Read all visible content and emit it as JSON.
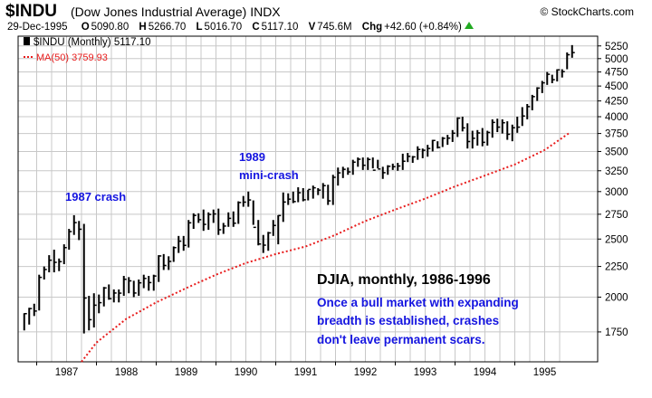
{
  "header": {
    "symbol": "$INDU",
    "name": "(Dow Jones Industrial Average)",
    "exchange": "INDX",
    "brand": "© StockCharts.com",
    "date": "29-Dec-1995",
    "open_label": "O",
    "open": "5090.80",
    "high_label": "H",
    "high": "5266.70",
    "low_label": "L",
    "low": "5016.70",
    "close_label": "C",
    "close": "5117.10",
    "volume_label": "V",
    "volume": "745.6M",
    "change_label": "Chg",
    "change": "+42.60 (+0.84%)",
    "change_color": "#22aa22"
  },
  "legend": {
    "series1": "$INDU (Monthly) 5117.10",
    "series2": "MA(50) 3759.93"
  },
  "annotations": {
    "crash1987": "1987 crash",
    "crash1989_line1": "1989",
    "crash1989_line2": "mini-crash"
  },
  "textbox": {
    "title": "DJIA, monthly, 1986-1996",
    "line1": "Once a bull market with expanding",
    "line2": "breadth is established, crashes",
    "line3": "don't leave permanent scars."
  },
  "chart_data": {
    "type": "ohlc",
    "title": "",
    "xlabel": "",
    "ylabel": "",
    "scale": "log",
    "ylim": [
      1560,
      5450
    ],
    "yticks": [
      1750,
      2000,
      2250,
      2500,
      2750,
      3000,
      3250,
      3500,
      3750,
      4000,
      4250,
      4500,
      4750,
      5000,
      5250
    ],
    "x_tick_labels": [
      "1987",
      "1988",
      "1989",
      "1990",
      "1991",
      "1992",
      "1993",
      "1994",
      "1995"
    ],
    "x_start_year": 1986.75,
    "colors": {
      "price": "#000000",
      "ma": "#e81c1c",
      "annotation": "#1515e0",
      "grid": "#c8c8c8"
    },
    "series": [
      {
        "name": "$INDU (Monthly)",
        "style": "hlc bars",
        "x": [
          "1986-10",
          "1986-11",
          "1986-12",
          "1987-01",
          "1987-02",
          "1987-03",
          "1987-04",
          "1987-05",
          "1987-06",
          "1987-07",
          "1987-08",
          "1987-09",
          "1987-10",
          "1987-11",
          "1987-12",
          "1988-01",
          "1988-02",
          "1988-03",
          "1988-04",
          "1988-05",
          "1988-06",
          "1988-07",
          "1988-08",
          "1988-09",
          "1988-10",
          "1988-11",
          "1988-12",
          "1989-01",
          "1989-02",
          "1989-03",
          "1989-04",
          "1989-05",
          "1989-06",
          "1989-07",
          "1989-08",
          "1989-09",
          "1989-10",
          "1989-11",
          "1989-12",
          "1990-01",
          "1990-02",
          "1990-03",
          "1990-04",
          "1990-05",
          "1990-06",
          "1990-07",
          "1990-08",
          "1990-09",
          "1990-10",
          "1990-11",
          "1990-12",
          "1991-01",
          "1991-02",
          "1991-03",
          "1991-04",
          "1991-05",
          "1991-06",
          "1991-07",
          "1991-08",
          "1991-09",
          "1991-10",
          "1991-11",
          "1991-12",
          "1992-01",
          "1992-02",
          "1992-03",
          "1992-04",
          "1992-05",
          "1992-06",
          "1992-07",
          "1992-08",
          "1992-09",
          "1992-10",
          "1992-11",
          "1992-12",
          "1993-01",
          "1993-02",
          "1993-03",
          "1993-04",
          "1993-05",
          "1993-06",
          "1993-07",
          "1993-08",
          "1993-09",
          "1993-10",
          "1993-11",
          "1993-12",
          "1994-01",
          "1994-02",
          "1994-03",
          "1994-04",
          "1994-05",
          "1994-06",
          "1994-07",
          "1994-08",
          "1994-09",
          "1994-10",
          "1994-11",
          "1994-12",
          "1995-01",
          "1995-02",
          "1995-03",
          "1995-04",
          "1995-05",
          "1995-06",
          "1995-07",
          "1995-08",
          "1995-09",
          "1995-10",
          "1995-11",
          "1995-12"
        ],
        "high": [
          1880,
          1920,
          1950,
          2180,
          2250,
          2350,
          2400,
          2320,
          2450,
          2600,
          2740,
          2680,
          2650,
          2010,
          2030,
          2020,
          2080,
          2100,
          2060,
          2060,
          2170,
          2160,
          2130,
          2140,
          2180,
          2170,
          2180,
          2350,
          2360,
          2340,
          2430,
          2530,
          2530,
          2690,
          2760,
          2760,
          2800,
          2770,
          2800,
          2810,
          2660,
          2770,
          2780,
          2890,
          2950,
          3000,
          2900,
          2690,
          2540,
          2570,
          2690,
          2740,
          2990,
          2980,
          3000,
          3050,
          3040,
          3020,
          3070,
          3040,
          3100,
          3080,
          3200,
          3290,
          3300,
          3290,
          3390,
          3420,
          3420,
          3420,
          3420,
          3390,
          3300,
          3320,
          3340,
          3350,
          3470,
          3480,
          3440,
          3570,
          3540,
          3590,
          3660,
          3640,
          3700,
          3730,
          3800,
          3990,
          4000,
          3900,
          3790,
          3800,
          3830,
          3790,
          3960,
          3970,
          3960,
          3930,
          3880,
          4000,
          4150,
          4200,
          4350,
          4480,
          4590,
          4750,
          4700,
          4800,
          4800,
          5120,
          5266.7
        ],
        "low": [
          1760,
          1800,
          1860,
          1900,
          2140,
          2200,
          2200,
          2210,
          2270,
          2400,
          2540,
          2490,
          1740,
          1760,
          1780,
          1880,
          1930,
          1980,
          1960,
          1960,
          2010,
          2030,
          2000,
          2010,
          2070,
          2050,
          2050,
          2120,
          2220,
          2220,
          2290,
          2370,
          2390,
          2420,
          2600,
          2660,
          2580,
          2590,
          2660,
          2540,
          2550,
          2620,
          2620,
          2650,
          2830,
          2830,
          2640,
          2440,
          2370,
          2390,
          2530,
          2450,
          2670,
          2850,
          2870,
          2880,
          2890,
          2900,
          2920,
          2960,
          2920,
          2850,
          2850,
          3070,
          3160,
          3200,
          3200,
          3300,
          3260,
          3260,
          3280,
          3280,
          3150,
          3200,
          3260,
          3250,
          3260,
          3360,
          3350,
          3390,
          3410,
          3430,
          3500,
          3540,
          3560,
          3590,
          3630,
          3700,
          3780,
          3540,
          3540,
          3580,
          3570,
          3580,
          3690,
          3770,
          3750,
          3660,
          3640,
          3760,
          3860,
          3960,
          4100,
          4250,
          4380,
          4520,
          4550,
          4580,
          4650,
          4800,
          5016.7
        ],
        "close": [
          1877,
          1914,
          1896,
          2158,
          2224,
          2305,
          2286,
          2292,
          2419,
          2573,
          2663,
          2596,
          1993,
          1834,
          1939,
          1958,
          2072,
          1988,
          2032,
          2031,
          2142,
          2129,
          2032,
          2113,
          2149,
          2115,
          2169,
          2343,
          2259,
          2294,
          2419,
          2480,
          2440,
          2661,
          2737,
          2693,
          2645,
          2748,
          2753,
          2591,
          2628,
          2707,
          2657,
          2877,
          2881,
          2905,
          2615,
          2453,
          2442,
          2560,
          2634,
          2736,
          2882,
          2914,
          2887,
          2987,
          2907,
          3025,
          3044,
          3017,
          3069,
          2895,
          3169,
          3224,
          3268,
          3236,
          3359,
          3397,
          3319,
          3394,
          3257,
          3272,
          3226,
          3306,
          3301,
          3310,
          3371,
          3435,
          3428,
          3527,
          3516,
          3540,
          3651,
          3555,
          3681,
          3684,
          3754,
          3978,
          3832,
          3636,
          3682,
          3758,
          3625,
          3765,
          3913,
          3843,
          3908,
          3739,
          3834,
          3843,
          4011,
          4158,
          4321,
          4465,
          4556,
          4708,
          4611,
          4789,
          4756,
          5075,
          5117.1
        ]
      },
      {
        "name": "MA(50)",
        "style": "dotted line",
        "x": [
          "1987-10",
          "1988-01",
          "1988-07",
          "1989-01",
          "1989-07",
          "1990-01",
          "1990-07",
          "1991-01",
          "1991-07",
          "1992-01",
          "1992-07",
          "1993-01",
          "1993-07",
          "1994-01",
          "1994-07",
          "1995-01",
          "1995-07",
          "1995-12"
        ],
        "values": [
          1560,
          1680,
          1840,
          1960,
          2070,
          2180,
          2280,
          2360,
          2430,
          2540,
          2680,
          2800,
          2920,
          3060,
          3190,
          3330,
          3520,
          3759.93
        ]
      }
    ]
  }
}
